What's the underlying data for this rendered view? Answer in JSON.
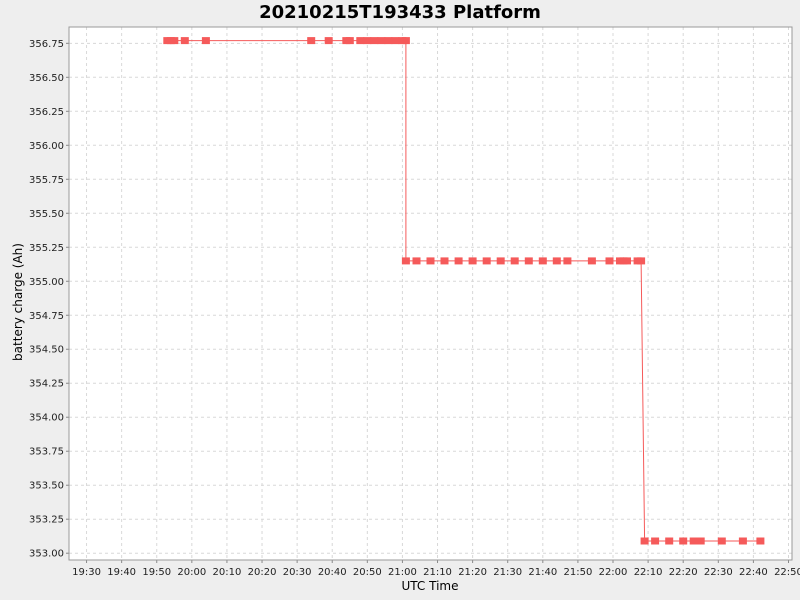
{
  "chart_data": {
    "type": "line",
    "title": "20210215T193433 Platform",
    "xlabel": "UTC Time",
    "ylabel": "battery charge (Ah)",
    "x_ticks": [
      "19:30",
      "19:40",
      "19:50",
      "20:00",
      "20:10",
      "20:20",
      "20:30",
      "20:40",
      "20:50",
      "21:00",
      "21:10",
      "21:20",
      "21:30",
      "21:40",
      "21:50",
      "22:00",
      "22:10",
      "22:20",
      "22:30",
      "22:40",
      "22:50"
    ],
    "y_ticks": [
      "353.00",
      "353.25",
      "353.50",
      "353.75",
      "354.00",
      "354.25",
      "354.50",
      "354.75",
      "355.00",
      "355.25",
      "355.50",
      "355.75",
      "356.00",
      "356.25",
      "356.50",
      "356.75"
    ],
    "xlim": [
      "19:25",
      "22:51"
    ],
    "ylim": [
      352.95,
      356.87
    ],
    "grid": true,
    "colors": {
      "series": "#f55a5a",
      "background": "#ffffff",
      "page": "#eeeeee"
    },
    "series": [
      {
        "x": [
          "19:53",
          "19:54",
          "19:55",
          "19:58",
          "20:04",
          "20:34",
          "20:39",
          "20:44",
          "20:45",
          "20:48",
          "20:50",
          "20:52",
          "20:54",
          "20:56",
          "20:58",
          "21:00",
          "21:01",
          "21:01",
          "21:04",
          "21:08",
          "21:12",
          "21:16",
          "21:20",
          "21:24",
          "21:28",
          "21:32",
          "21:36",
          "21:40",
          "21:44",
          "21:47",
          "21:54",
          "21:59",
          "22:02",
          "22:03",
          "22:04",
          "22:07",
          "22:08",
          "22:09",
          "22:12",
          "22:16",
          "22:20",
          "22:23",
          "22:25",
          "22:31",
          "22:37",
          "22:42"
        ],
        "y": [
          356.77,
          356.77,
          356.77,
          356.77,
          356.77,
          356.77,
          356.77,
          356.77,
          356.77,
          356.77,
          356.77,
          356.77,
          356.77,
          356.77,
          356.77,
          356.77,
          356.77,
          355.15,
          355.15,
          355.15,
          355.15,
          355.15,
          355.15,
          355.15,
          355.15,
          355.15,
          355.15,
          355.15,
          355.15,
          355.15,
          355.15,
          355.15,
          355.15,
          355.15,
          355.15,
          355.15,
          355.15,
          353.09,
          353.09,
          353.09,
          353.09,
          353.09,
          353.09,
          353.09,
          353.09,
          353.09
        ]
      }
    ]
  }
}
